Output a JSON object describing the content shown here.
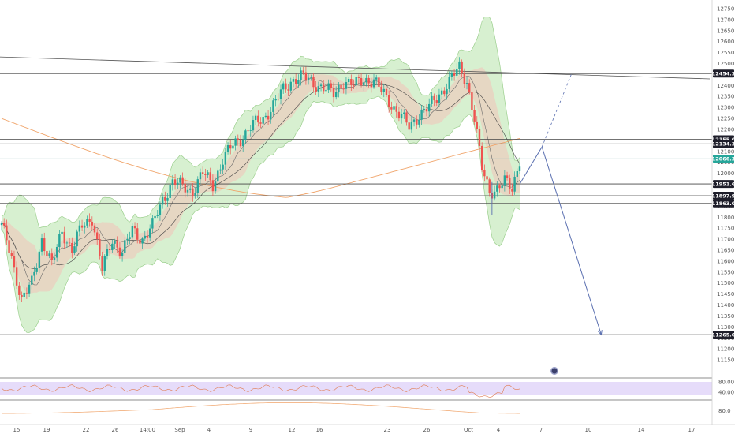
{
  "chart_data": {
    "type": "candlestick",
    "title": "",
    "xlabel": "",
    "ylabel": "",
    "ylim": [
      11100,
      12775
    ],
    "x_labels": [
      "15",
      "19",
      "22",
      "26",
      "14:00",
      "Sep",
      "4",
      "9",
      "12",
      "16",
      "23",
      "26",
      "Oct",
      "4",
      "7",
      "10",
      "14",
      "17"
    ],
    "y_ticks": [
      12750,
      12700,
      12650,
      12600,
      12550,
      12500,
      12450,
      12400,
      12350,
      12300,
      12250,
      12200,
      12150,
      12100,
      12050,
      12000,
      11950,
      11900,
      11850,
      11800,
      11750,
      11700,
      11650,
      11600,
      11550,
      11500,
      11450,
      11400,
      11350,
      11300,
      11250,
      11200,
      11150
    ],
    "horizontal_levels": [
      {
        "label": "12454.3",
        "value": 12454.3,
        "style": "dark"
      },
      {
        "label": "12155.0",
        "value": 12155.0,
        "style": "dark"
      },
      {
        "label": "12134.3",
        "value": 12134.3,
        "style": "dark"
      },
      {
        "label": "12066.3",
        "value": 12066.3,
        "style": "teal"
      },
      {
        "label": "11951.6",
        "value": 11951.6,
        "style": "dark"
      },
      {
        "label": "11897.9",
        "value": 11897.9,
        "style": "dark"
      },
      {
        "label": "11863.0",
        "value": 11863.0,
        "style": "dark"
      },
      {
        "label": "11265.0",
        "value": 11265.0,
        "style": "dark"
      }
    ],
    "projection_path": [
      {
        "bar": 0,
        "price": 11951
      },
      {
        "bar": 6,
        "price": 12120
      },
      {
        "bar": 22,
        "price": 11265
      }
    ],
    "projection_alternate": [
      {
        "bar": 6,
        "price": 12120
      },
      {
        "bar": 14,
        "price": 12454
      }
    ],
    "rsi_levels": [
      "80.00",
      "40.00"
    ],
    "osc_levels": [
      "80.0"
    ]
  },
  "colors": {
    "bull": "#26a69a",
    "bear": "#ef5350",
    "band_fill": "#b7e3a9",
    "band_inner": "#f3c3b8",
    "ma_orange": "#f0a46a",
    "projection": "#5a6fb0",
    "rsi_band": "#e6dcfa"
  }
}
